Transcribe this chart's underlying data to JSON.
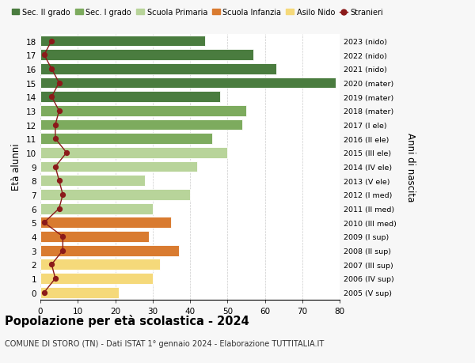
{
  "ages": [
    18,
    17,
    16,
    15,
    14,
    13,
    12,
    11,
    10,
    9,
    8,
    7,
    6,
    5,
    4,
    3,
    2,
    1,
    0
  ],
  "bar_values": [
    44,
    57,
    63,
    79,
    48,
    55,
    54,
    46,
    50,
    42,
    28,
    40,
    30,
    35,
    29,
    37,
    32,
    30,
    21
  ],
  "bar_colors": [
    "#4a7c3f",
    "#4a7c3f",
    "#4a7c3f",
    "#4a7c3f",
    "#4a7c3f",
    "#7dab5e",
    "#7dab5e",
    "#7dab5e",
    "#b8d49a",
    "#b8d49a",
    "#b8d49a",
    "#b8d49a",
    "#b8d49a",
    "#d97b30",
    "#d97b30",
    "#d97b30",
    "#f5d97a",
    "#f5d97a",
    "#f5d97a"
  ],
  "right_labels": [
    "2005 (V sup)",
    "2006 (IV sup)",
    "2007 (III sup)",
    "2008 (II sup)",
    "2009 (I sup)",
    "2010 (III med)",
    "2011 (II med)",
    "2012 (I med)",
    "2013 (V ele)",
    "2014 (IV ele)",
    "2015 (III ele)",
    "2016 (II ele)",
    "2017 (I ele)",
    "2018 (mater)",
    "2019 (mater)",
    "2020 (mater)",
    "2021 (nido)",
    "2022 (nido)",
    "2023 (nido)"
  ],
  "stranieri_values": [
    3,
    1,
    3,
    5,
    3,
    5,
    4,
    4,
    7,
    4,
    5,
    6,
    5,
    1,
    6,
    6,
    3,
    4,
    1
  ],
  "legend_labels": [
    "Sec. II grado",
    "Sec. I grado",
    "Scuola Primaria",
    "Scuola Infanzia",
    "Asilo Nido",
    "Stranieri"
  ],
  "legend_colors": [
    "#4a7c3f",
    "#7dab5e",
    "#b8d49a",
    "#d97b30",
    "#f5d97a",
    "#8b1a1a"
  ],
  "ylabel": "Età alunni",
  "right_ylabel": "Anni di nascita",
  "title": "Popolazione per età scolastica - 2024",
  "subtitle": "COMUNE DI STORO (TN) - Dati ISTAT 1° gennaio 2024 - Elaborazione TUTTITALIA.IT",
  "xlim": [
    0,
    80
  ],
  "background_color": "#f7f7f7",
  "bar_background": "#ffffff",
  "grid_color": "#cccccc"
}
